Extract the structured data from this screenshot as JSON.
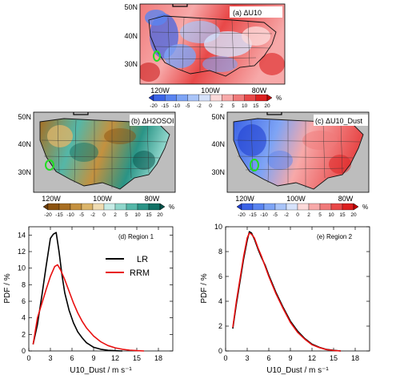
{
  "maps": [
    {
      "id": "a",
      "label": "(a) ΔU10",
      "lat_ticks": [
        "50N",
        "40N",
        "30N"
      ],
      "lon_ticks": [
        "120W",
        "100W",
        "80W"
      ],
      "colorbar": {
        "ticks": [
          "-20",
          "-15",
          "-10",
          "-5",
          "-2",
          "0",
          "2",
          "5",
          "10",
          "15",
          "20"
        ],
        "unit": "%",
        "colors": [
          "#1f3fd0",
          "#3b63e6",
          "#5a84f0",
          "#7ea4f5",
          "#a9c4f8",
          "#d6e2fb",
          "#fbd9d9",
          "#f7a9a9",
          "#f07a7a",
          "#e84848",
          "#dc1f1f",
          "#c40000"
        ]
      }
    },
    {
      "id": "b",
      "label": "(b) ΔH2OSOI",
      "lat_ticks": [
        "50N",
        "40N",
        "30N"
      ],
      "lon_ticks": [
        "120W",
        "100W",
        "80W"
      ],
      "colorbar": {
        "ticks": [
          "-20",
          "-15",
          "-10",
          "-5",
          "-2",
          "0",
          "2",
          "5",
          "10",
          "15",
          "20"
        ],
        "unit": "%",
        "colors": [
          "#6b3d06",
          "#8c5410",
          "#a86f22",
          "#c4913f",
          "#dbb56b",
          "#efdcb2",
          "#c7ece6",
          "#8fd6cb",
          "#54b7a8",
          "#2a9486",
          "#117266",
          "#04524a"
        ]
      }
    },
    {
      "id": "c",
      "label": "(c) ΔU10_Dust",
      "lat_ticks": [
        "50N",
        "40N",
        "30N"
      ],
      "lon_ticks": [
        "120W",
        "100W",
        "80W"
      ],
      "colorbar": {
        "ticks": [
          "-20",
          "-15",
          "-10",
          "-5",
          "-2",
          "0",
          "2",
          "5",
          "10",
          "15",
          "20"
        ],
        "unit": "%",
        "colors": [
          "#1f3fd0",
          "#3b63e6",
          "#5a84f0",
          "#7ea4f5",
          "#a9c4f8",
          "#d6e2fb",
          "#fbd9d9",
          "#f7a9a9",
          "#f07a7a",
          "#e84848",
          "#dc1f1f",
          "#c40000"
        ]
      }
    }
  ],
  "chart_data": [
    {
      "type": "line",
      "title": "(d) Region 1",
      "xlabel": "U10_Dust / m s⁻¹",
      "ylabel": "PDF / %",
      "xlim": [
        0,
        20
      ],
      "ylim": [
        0,
        15
      ],
      "xticks": [
        0,
        3,
        6,
        9,
        12,
        15,
        18
      ],
      "yticks": [
        0,
        2,
        4,
        6,
        8,
        10,
        12,
        14
      ],
      "legend": "center-right",
      "series": [
        {
          "name": "LR",
          "color": "#000000",
          "x": [
            0.6,
            1.2,
            1.8,
            2.4,
            3.0,
            3.4,
            3.8,
            4.2,
            4.6,
            5.0,
            5.6,
            6.2,
            6.8,
            7.4,
            8.0,
            9.0,
            10.0,
            11.0,
            12.0,
            13.0
          ],
          "y": [
            0.8,
            3.2,
            6.6,
            10.2,
            13.6,
            14.1,
            14.3,
            12.0,
            9.2,
            7.0,
            4.9,
            3.4,
            2.3,
            1.6,
            1.0,
            0.45,
            0.2,
            0.08,
            0.03,
            0.0
          ]
        },
        {
          "name": "RRM",
          "color": "#e81010",
          "x": [
            0.6,
            1.2,
            1.8,
            2.4,
            3.0,
            3.6,
            4.0,
            4.4,
            5.0,
            5.6,
            6.2,
            6.8,
            7.4,
            8.0,
            9.0,
            10.0,
            11.0,
            12.0,
            13.0,
            14.0,
            15.0,
            16.0
          ],
          "y": [
            0.8,
            4.0,
            5.7,
            7.4,
            9.0,
            10.2,
            10.4,
            9.8,
            8.6,
            7.2,
            5.8,
            4.6,
            3.6,
            2.8,
            1.8,
            1.1,
            0.65,
            0.38,
            0.2,
            0.1,
            0.04,
            0.0
          ]
        }
      ]
    },
    {
      "type": "line",
      "title": "(e) Region 2",
      "xlabel": "U10_Dust / m s⁻¹",
      "ylabel": "PDF / %",
      "xlim": [
        0,
        20
      ],
      "ylim": [
        0,
        10
      ],
      "xticks": [
        0,
        3,
        6,
        9,
        12,
        15,
        18
      ],
      "yticks": [
        0,
        2,
        4,
        6,
        8,
        10
      ],
      "series": [
        {
          "name": "LR",
          "color": "#000000",
          "x": [
            1.0,
            1.5,
            2.0,
            2.5,
            3.0,
            3.3,
            3.6,
            4.0,
            4.5,
            5.0,
            5.5,
            6.0,
            7.0,
            8.0,
            9.0,
            10.0,
            11.0,
            12.0,
            13.0,
            14.0,
            15.0,
            16.0
          ],
          "y": [
            1.8,
            3.8,
            5.6,
            7.4,
            8.9,
            9.6,
            9.5,
            9.0,
            8.2,
            7.5,
            6.9,
            6.1,
            4.7,
            3.5,
            2.4,
            1.6,
            1.0,
            0.55,
            0.3,
            0.12,
            0.05,
            0.0
          ]
        },
        {
          "name": "RRM",
          "color": "#e81010",
          "x": [
            1.0,
            1.5,
            2.0,
            2.5,
            3.0,
            3.3,
            3.6,
            4.0,
            4.5,
            5.0,
            5.5,
            6.0,
            7.0,
            8.0,
            9.0,
            10.0,
            11.0,
            12.0,
            13.0,
            14.0,
            15.0,
            16.0
          ],
          "y": [
            1.9,
            4.0,
            5.8,
            7.6,
            9.1,
            9.5,
            9.4,
            9.1,
            8.3,
            7.6,
            6.8,
            6.0,
            4.6,
            3.4,
            2.3,
            1.5,
            0.95,
            0.5,
            0.28,
            0.11,
            0.04,
            0.0
          ]
        }
      ]
    }
  ]
}
